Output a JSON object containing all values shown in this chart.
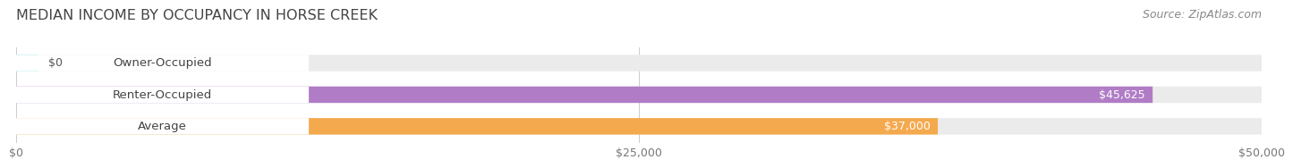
{
  "title": "MEDIAN INCOME BY OCCUPANCY IN HORSE CREEK",
  "source": "Source: ZipAtlas.com",
  "categories": [
    "Owner-Occupied",
    "Renter-Occupied",
    "Average"
  ],
  "values": [
    0,
    45625,
    37000
  ],
  "bar_colors": [
    "#62cdd4",
    "#b07cc6",
    "#f5a94e"
  ],
  "bar_bg_color": "#ebebeb",
  "value_labels": [
    "$0",
    "$45,625",
    "$37,000"
  ],
  "tick_labels": [
    "$0",
    "$25,000",
    "$50,000"
  ],
  "tick_values": [
    0,
    25000,
    50000
  ],
  "xlim": [
    0,
    50000
  ],
  "bar_height": 0.52,
  "bar_gap": 0.18,
  "title_fontsize": 11.5,
  "source_fontsize": 9,
  "label_fontsize": 9.5,
  "value_fontsize": 9
}
